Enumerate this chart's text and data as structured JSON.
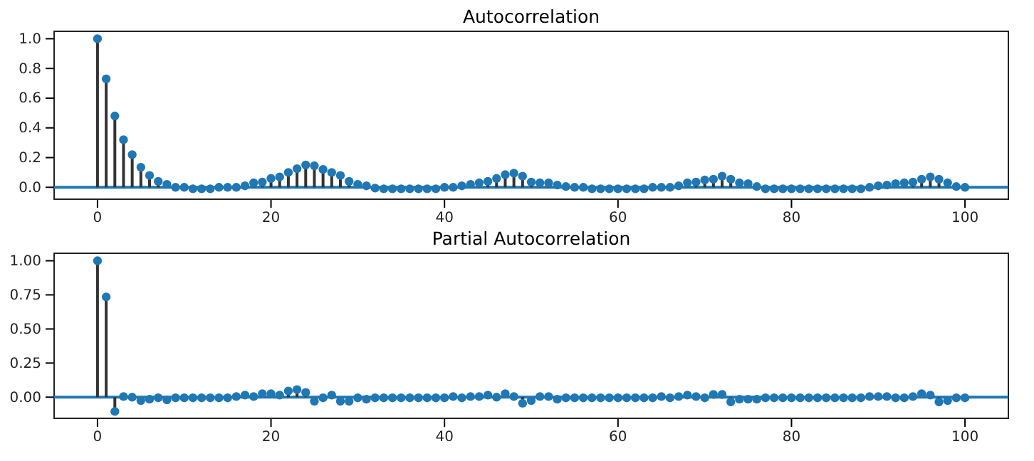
{
  "chart_data": [
    {
      "type": "lollipop",
      "title": "Autocorrelation",
      "marker": "circle",
      "x": [
        0,
        1,
        2,
        3,
        4,
        5,
        6,
        7,
        8,
        9,
        10,
        11,
        12,
        13,
        14,
        15,
        16,
        17,
        18,
        19,
        20,
        21,
        22,
        23,
        24,
        25,
        26,
        27,
        28,
        29,
        30,
        31,
        32,
        33,
        34,
        35,
        36,
        37,
        38,
        39,
        40,
        41,
        42,
        43,
        44,
        45,
        46,
        47,
        48,
        49,
        50,
        51,
        52,
        53,
        54,
        55,
        56,
        57,
        58,
        59,
        60,
        61,
        62,
        63,
        64,
        65,
        66,
        67,
        68,
        69,
        70,
        71,
        72,
        73,
        74,
        75,
        76,
        77,
        78,
        79,
        80,
        81,
        82,
        83,
        84,
        85,
        86,
        87,
        88,
        89,
        90,
        91,
        92,
        93,
        94,
        95,
        96,
        97,
        98,
        99,
        100
      ],
      "series": [
        {
          "color": "#1f77b4",
          "values": [
            1,
            0.73,
            0.48,
            0.32,
            0.22,
            0.135,
            0.08,
            0.04,
            0.02,
            0,
            0,
            -0.01,
            -0.01,
            -0.01,
            0,
            0,
            0,
            0.01,
            0.03,
            0.035,
            0.06,
            0.07,
            0.1,
            0.125,
            0.15,
            0.145,
            0.12,
            0.1,
            0.08,
            0.04,
            0.02,
            0.01,
            -0.005,
            -0.01,
            -0.01,
            -0.01,
            -0.01,
            -0.01,
            -0.01,
            -0.01,
            0,
            0,
            0.01,
            0.02,
            0.03,
            0.04,
            0.06,
            0.085,
            0.095,
            0.075,
            0.035,
            0.03,
            0.03,
            0.015,
            0.005,
            0,
            0,
            -0.01,
            -0.01,
            -0.01,
            -0.01,
            -0.01,
            -0.01,
            -0.01,
            0,
            0,
            0,
            0.01,
            0.03,
            0.035,
            0.05,
            0.055,
            0.075,
            0.055,
            0.03,
            0.025,
            0.005,
            -0.01,
            -0.01,
            -0.01,
            -0.01,
            -0.01,
            -0.01,
            -0.01,
            -0.01,
            -0.01,
            -0.01,
            -0.01,
            -0.01,
            0,
            0.01,
            0.015,
            0.025,
            0.03,
            0.035,
            0.055,
            0.07,
            0.055,
            0.03,
            0.005,
            0
          ]
        }
      ],
      "xlim": [
        -5,
        105
      ],
      "xticks": [
        0,
        20,
        40,
        60,
        80,
        100
      ],
      "ylim": [
        -0.08,
        1.05
      ],
      "yticks": [
        {
          "value": 0,
          "label": "0.0"
        },
        {
          "value": 0.2,
          "label": "0.2"
        },
        {
          "value": 0.4,
          "label": "0.4"
        },
        {
          "value": 0.6,
          "label": "0.6"
        },
        {
          "value": 0.8,
          "label": "0.8"
        },
        {
          "value": 1,
          "label": "1.0"
        }
      ],
      "ref_lines": [
        {
          "axis": "y",
          "value": 0,
          "color": "#1f77b4"
        }
      ]
    },
    {
      "type": "lollipop",
      "title": "Partial Autocorrelation",
      "marker": "circle",
      "x": [
        0,
        1,
        2,
        3,
        4,
        5,
        6,
        7,
        8,
        9,
        10,
        11,
        12,
        13,
        14,
        15,
        16,
        17,
        18,
        19,
        20,
        21,
        22,
        23,
        24,
        25,
        26,
        27,
        28,
        29,
        30,
        31,
        32,
        33,
        34,
        35,
        36,
        37,
        38,
        39,
        40,
        41,
        42,
        43,
        44,
        45,
        46,
        47,
        48,
        49,
        50,
        51,
        52,
        53,
        54,
        55,
        56,
        57,
        58,
        59,
        60,
        61,
        62,
        63,
        64,
        65,
        66,
        67,
        68,
        69,
        70,
        71,
        72,
        73,
        74,
        75,
        76,
        77,
        78,
        79,
        80,
        81,
        82,
        83,
        84,
        85,
        86,
        87,
        88,
        89,
        90,
        91,
        92,
        93,
        94,
        95,
        96,
        97,
        98,
        99,
        100
      ],
      "series": [
        {
          "color": "#1f77b4",
          "values": [
            1,
            0.735,
            -0.105,
            0.005,
            0,
            -0.025,
            -0.015,
            -0.005,
            -0.02,
            -0.005,
            -0.005,
            -0.005,
            -0.005,
            -0.005,
            -0.005,
            -0.005,
            0.005,
            0.015,
            0.005,
            0.025,
            0.025,
            0.015,
            0.045,
            0.055,
            0.035,
            -0.03,
            -0.005,
            0.015,
            -0.03,
            -0.03,
            -0.005,
            -0.015,
            -0.005,
            -0.005,
            -0.005,
            -0.005,
            -0.005,
            -0.005,
            -0.005,
            -0.005,
            -0.005,
            0.005,
            -0.005,
            0.005,
            0.005,
            0.015,
            0,
            0.025,
            0.005,
            -0.045,
            -0.025,
            0.005,
            0.005,
            -0.015,
            -0.005,
            -0.005,
            -0.005,
            -0.005,
            -0.005,
            -0.005,
            -0.005,
            -0.005,
            -0.005,
            -0.005,
            -0.005,
            0.005,
            -0.005,
            0.005,
            0.015,
            0.005,
            -0.005,
            0.02,
            0.02,
            -0.035,
            -0.015,
            -0.015,
            -0.015,
            -0.005,
            -0.005,
            -0.005,
            -0.005,
            -0.005,
            -0.005,
            -0.005,
            -0.005,
            -0.005,
            -0.005,
            -0.005,
            -0.005,
            0.005,
            0.005,
            0.005,
            -0.005,
            -0.005,
            0.005,
            0.025,
            0.015,
            -0.035,
            -0.025,
            -0.005,
            -0.005
          ]
        }
      ],
      "xlim": [
        -5,
        105
      ],
      "xticks": [
        0,
        20,
        40,
        60,
        80,
        100
      ],
      "ylim": [
        -0.155,
        1.055
      ],
      "yticks": [
        {
          "value": 0,
          "label": "0.00"
        },
        {
          "value": 0.25,
          "label": "0.25"
        },
        {
          "value": 0.5,
          "label": "0.50"
        },
        {
          "value": 0.75,
          "label": "0.75"
        },
        {
          "value": 1,
          "label": "1.00"
        }
      ],
      "ref_lines": [
        {
          "axis": "y",
          "value": 0,
          "color": "#1f77b4"
        }
      ]
    }
  ]
}
